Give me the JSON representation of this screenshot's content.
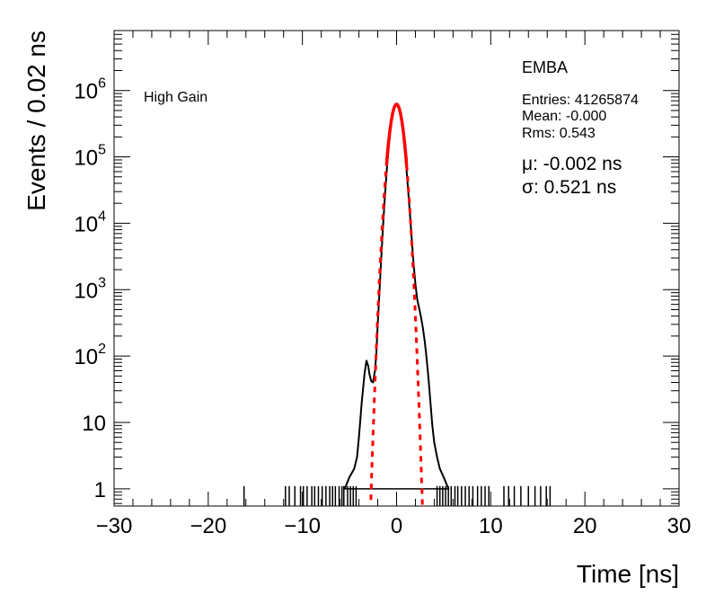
{
  "chart_data": {
    "type": "histogram",
    "xlabel": "Time [ns]",
    "ylabel": "Events / 0.02 ns",
    "xlim": [
      -30,
      30
    ],
    "ylim": [
      0.55,
      8000000
    ],
    "y_scale": "log",
    "x_ticks": [
      {
        "value": -30,
        "label": "−30"
      },
      {
        "value": -20,
        "label": "−20"
      },
      {
        "value": -10,
        "label": "−10"
      },
      {
        "value": 0,
        "label": "0"
      },
      {
        "value": 10,
        "label": "10"
      },
      {
        "value": 20,
        "label": "20"
      },
      {
        "value": 30,
        "label": "30"
      }
    ],
    "y_ticks": [
      {
        "value": 1,
        "label": "1"
      },
      {
        "value": 10,
        "label": "10"
      },
      {
        "value": 100,
        "base": "10",
        "exp": "2"
      },
      {
        "value": 1000,
        "base": "10",
        "exp": "3"
      },
      {
        "value": 10000,
        "base": "10",
        "exp": "4"
      },
      {
        "value": 100000,
        "base": "10",
        "exp": "5"
      },
      {
        "value": 1000000,
        "base": "10",
        "exp": "6"
      }
    ],
    "annotation": "High Gain",
    "legend": {
      "title": "EMBA",
      "entries": "Entries: 41265874",
      "mean": "Mean: -0.000",
      "rms": "Rms: 0.543",
      "position": "top-right"
    },
    "fit": {
      "mu_text": "μ: -0.002 ns",
      "sigma_text": "σ: 0.521 ns",
      "mu": -0.002,
      "sigma": 0.521,
      "peak": 620000,
      "color": "#ff0000",
      "solid_range": [
        -1.07,
        1.07
      ]
    },
    "series": [
      {
        "color": "#000000",
        "points": [
          [
            -5.5,
            1
          ],
          [
            -5.0,
            1.5
          ],
          [
            -4.5,
            2
          ],
          [
            -4.2,
            3
          ],
          [
            -4.0,
            6
          ],
          [
            -3.7,
            20
          ],
          [
            -3.4,
            55
          ],
          [
            -3.2,
            85
          ],
          [
            -3.0,
            70
          ],
          [
            -2.9,
            55
          ],
          [
            -2.7,
            42
          ],
          [
            -2.5,
            40
          ],
          [
            -2.3,
            60
          ],
          [
            -2.15,
            110
          ],
          [
            -2.0,
            300
          ],
          [
            -1.8,
            1000
          ],
          [
            -1.6,
            3500
          ],
          [
            -1.4,
            11000
          ],
          [
            -1.2,
            30000
          ],
          [
            -1.0,
            75000
          ],
          [
            -0.8,
            160000
          ],
          [
            -0.6,
            300000
          ],
          [
            -0.4,
            460000
          ],
          [
            -0.2,
            580000
          ],
          [
            0.0,
            620000
          ],
          [
            0.2,
            580000
          ],
          [
            0.4,
            460000
          ],
          [
            0.6,
            300000
          ],
          [
            0.8,
            160000
          ],
          [
            1.0,
            80000
          ],
          [
            1.2,
            35000
          ],
          [
            1.4,
            15000
          ],
          [
            1.6,
            6000
          ],
          [
            1.8,
            2500
          ],
          [
            2.0,
            1200
          ],
          [
            2.2,
            700
          ],
          [
            2.4,
            520
          ],
          [
            2.6,
            380
          ],
          [
            2.8,
            260
          ],
          [
            3.0,
            160
          ],
          [
            3.2,
            90
          ],
          [
            3.4,
            45
          ],
          [
            3.6,
            20
          ],
          [
            3.8,
            9
          ],
          [
            4.0,
            5
          ],
          [
            4.3,
            3
          ],
          [
            4.6,
            2
          ],
          [
            5.0,
            1.5
          ],
          [
            5.5,
            1
          ]
        ]
      }
    ],
    "sparse_bins": [
      -16.2,
      -11.8,
      -11.4,
      -10.8,
      -10.2,
      -9.9,
      -9.5,
      -9.0,
      -8.7,
      -8.3,
      -7.9,
      -7.5,
      -7.1,
      -6.8,
      -6.5,
      -6.1,
      -5.8,
      -5.6,
      -5.2,
      -4.9,
      -4.6,
      -4.3,
      4.3,
      4.6,
      4.9,
      5.2,
      5.5,
      5.8,
      6.2,
      6.5,
      6.9,
      7.3,
      7.7,
      8.1,
      8.6,
      9.0,
      9.4,
      9.8,
      11.4,
      11.9,
      12.5,
      13.2,
      14.0,
      14.7,
      15.3,
      15.9,
      16.3
    ]
  }
}
